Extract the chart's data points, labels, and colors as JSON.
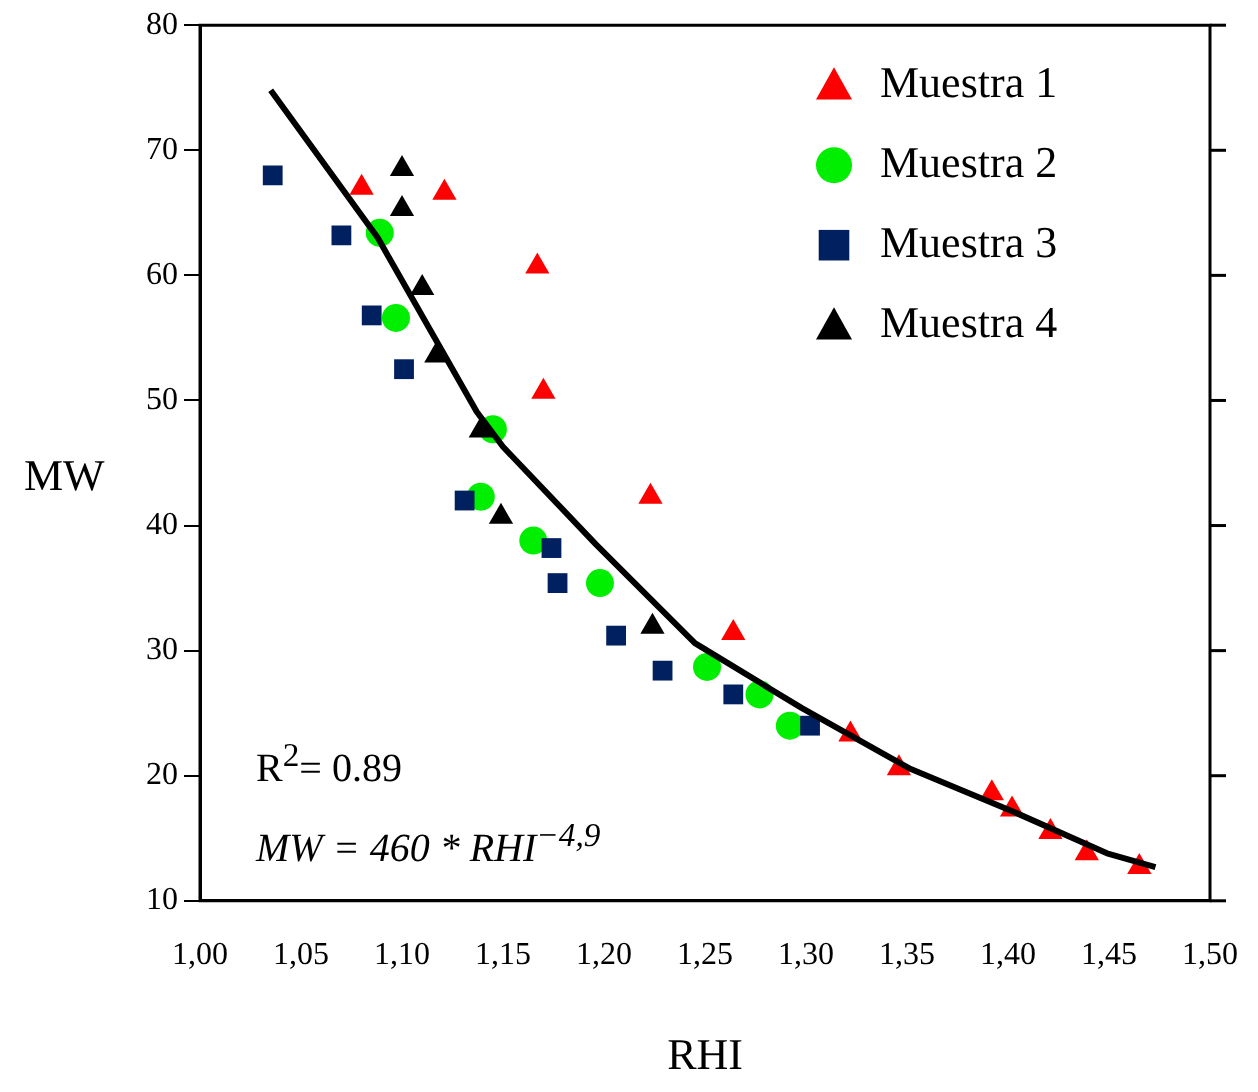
{
  "chart_data": {
    "type": "scatter",
    "xlabel": "RHI",
    "ylabel": "MW",
    "xlim": [
      1.0,
      1.5
    ],
    "ylim": [
      10,
      80
    ],
    "xticks": [
      {
        "value": 1.0,
        "label": "1,00"
      },
      {
        "value": 1.05,
        "label": "1,05"
      },
      {
        "value": 1.1,
        "label": "1,10"
      },
      {
        "value": 1.15,
        "label": "1,15"
      },
      {
        "value": 1.2,
        "label": "1,20"
      },
      {
        "value": 1.25,
        "label": "1,25"
      },
      {
        "value": 1.3,
        "label": "1,30"
      },
      {
        "value": 1.35,
        "label": "1,35"
      },
      {
        "value": 1.4,
        "label": "1,40"
      },
      {
        "value": 1.45,
        "label": "1,45"
      },
      {
        "value": 1.5,
        "label": "1,50"
      }
    ],
    "yticks": [
      10,
      20,
      30,
      40,
      50,
      60,
      70,
      80
    ],
    "grid": false,
    "legend": "top right",
    "annotations": [
      "R$^{2}$= 0.89",
      "MW = 460 * RHI$^{−4,9}$"
    ],
    "series": [
      {
        "name": "Muestra 1",
        "marker": "triangle",
        "color": "#ff0000",
        "x": [
          1.08,
          1.121,
          1.167,
          1.17,
          1.223,
          1.264,
          1.322,
          1.346,
          1.392,
          1.402,
          1.421,
          1.439,
          1.465
        ],
        "values": [
          67,
          66.6,
          60.7,
          50.7,
          42.3,
          31.4,
          23.3,
          20.6,
          18.6,
          17.3,
          15.5,
          13.8,
          12.7
        ]
      },
      {
        "name": "Muestra 2",
        "marker": "circle",
        "color": "#00ee00",
        "x": [
          1.089,
          1.097,
          1.145,
          1.139,
          1.165,
          1.198,
          1.251,
          1.277,
          1.292
        ],
        "values": [
          63.4,
          56.6,
          47.7,
          42.3,
          38.8,
          35.4,
          28.7,
          26.5,
          24.0
        ]
      },
      {
        "name": "Muestra 3",
        "marker": "square",
        "color": "#002060",
        "x": [
          1.036,
          1.07,
          1.085,
          1.101,
          1.131,
          1.174,
          1.177,
          1.206,
          1.229,
          1.264,
          1.302
        ],
        "values": [
          68.0,
          63.2,
          56.8,
          52.5,
          42.0,
          38.2,
          35.4,
          31.2,
          28.4,
          26.5,
          24.0
        ]
      },
      {
        "name": "Muestra 4",
        "marker": "triangle",
        "color": "#000000",
        "x": [
          1.1,
          1.1,
          1.11,
          1.117,
          1.139,
          1.149,
          1.224
        ],
        "values": [
          68.5,
          65.3,
          59.0,
          53.6,
          47.6,
          40.7,
          31.9
        ]
      },
      {
        "type": "line",
        "marker": "none",
        "line_style": "solid",
        "color": "#000000",
        "x": [
          1.035,
          1.088,
          1.137,
          1.15,
          1.196,
          1.245,
          1.298,
          1.351,
          1.403,
          1.449,
          1.473
        ],
        "values": [
          74.8,
          63,
          49.1,
          46.3,
          38.5,
          30.6,
          25.4,
          20.6,
          17.1,
          13.8,
          12.7
        ]
      }
    ]
  }
}
